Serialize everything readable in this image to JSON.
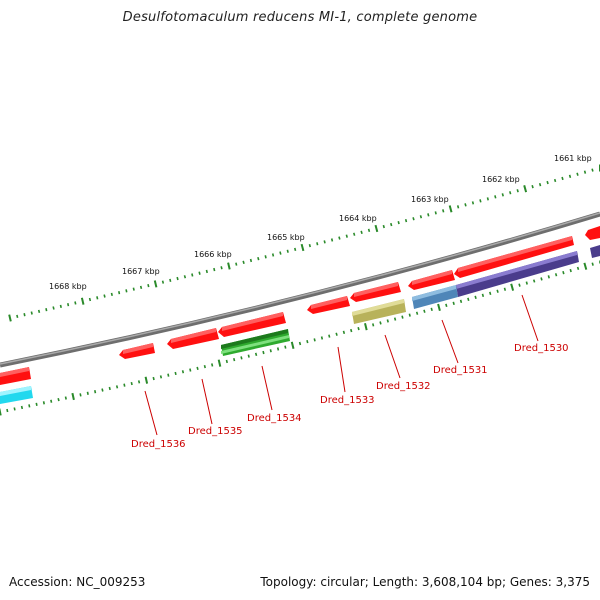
{
  "title": "Desulfotomaculum reducens MI-1, complete genome",
  "footer": {
    "accession": "Accession: NC_009253",
    "summary": "Topology: circular; Length: 3,608,104 bp; Genes: 3,375"
  },
  "scale": {
    "unit": "kbp",
    "labels": [
      "1661 kbp",
      "1662 kbp",
      "1663 kbp",
      "1664 kbp",
      "1665 kbp",
      "1666 kbp",
      "1667 kbp",
      "1668 kbp"
    ],
    "tick_color": "#2a8a2a"
  },
  "backbone_color": "#808080",
  "genes": [
    {
      "id": "Dred_1530",
      "color": "#ff0000",
      "track": "forward"
    },
    {
      "id": "Dred_1531",
      "color": "#ff0000",
      "track": "forward"
    },
    {
      "id": "Dred_1532",
      "color": "#ff0000",
      "track": "forward"
    },
    {
      "id": "Dred_1533",
      "color": "#ff0000",
      "track": "forward"
    },
    {
      "id": "Dred_1534",
      "color": "#ff0000",
      "track": "forward"
    },
    {
      "id": "Dred_1535",
      "color": "#ff0000",
      "track": "forward"
    },
    {
      "id": "Dred_1536",
      "color": "#ff0000",
      "track": "forward"
    }
  ],
  "feature_colors": {
    "purple": "#4a3c8c",
    "blue": "#4f86b8",
    "khaki": "#b8b25a",
    "green": "#2eaa2e",
    "cyan": "#22d8ee",
    "red": "#ff0000"
  }
}
